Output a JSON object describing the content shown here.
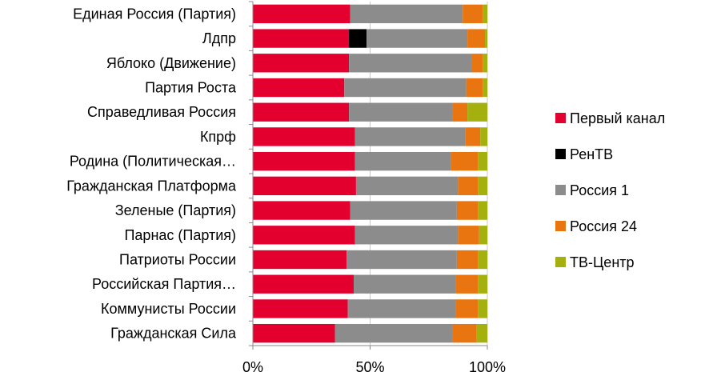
{
  "chart_data": {
    "type": "bar",
    "orientation": "horizontal",
    "stacked": "percent",
    "categories": [
      "Единая Россия (Партия)",
      "Лдпр",
      "Яблоко (Движение)",
      "Партия Роста",
      "Справедливая Россия",
      "Кпрф",
      "Родина (Политическая…",
      "Гражданская Платформа",
      "Зеленые (Партия)",
      "Парнас (Партия)",
      "Патриоты России",
      "Российская Партия…",
      "Коммунисты России",
      "Гражданская Сила"
    ],
    "series": [
      {
        "name": "Первый канал",
        "color": "#e3002f",
        "values": [
          41.5,
          41,
          41,
          39,
          41,
          43.5,
          43.5,
          44,
          41.5,
          43.5,
          40,
          43,
          40.5,
          35
        ]
      },
      {
        "name": "РенТВ",
        "color": "#000000",
        "values": [
          0,
          7.5,
          0,
          0,
          0,
          0,
          0,
          0,
          0,
          0,
          0,
          0,
          0,
          0
        ]
      },
      {
        "name": "Россия 1",
        "color": "#8c8c8c",
        "values": [
          48,
          43,
          52.5,
          52,
          44,
          47,
          41,
          43.5,
          45.5,
          44,
          47,
          43.5,
          46,
          50
        ]
      },
      {
        "name": "Россия 24",
        "color": "#e8750f",
        "values": [
          8.5,
          7.5,
          4.5,
          7,
          6.5,
          6.5,
          11.5,
          8.5,
          9,
          9,
          9,
          9.5,
          9.5,
          10.5
        ]
      },
      {
        "name": "ТВ-Центр",
        "color": "#a3b00d",
        "values": [
          2,
          1,
          2,
          2,
          8.5,
          3,
          4,
          4,
          4,
          3.5,
          4,
          4,
          4,
          4.5
        ]
      }
    ],
    "x_ticks": [
      "0%",
      "50%",
      "100%"
    ],
    "xlim": [
      0,
      100
    ],
    "legend_position": "right",
    "grid": "vertical"
  }
}
